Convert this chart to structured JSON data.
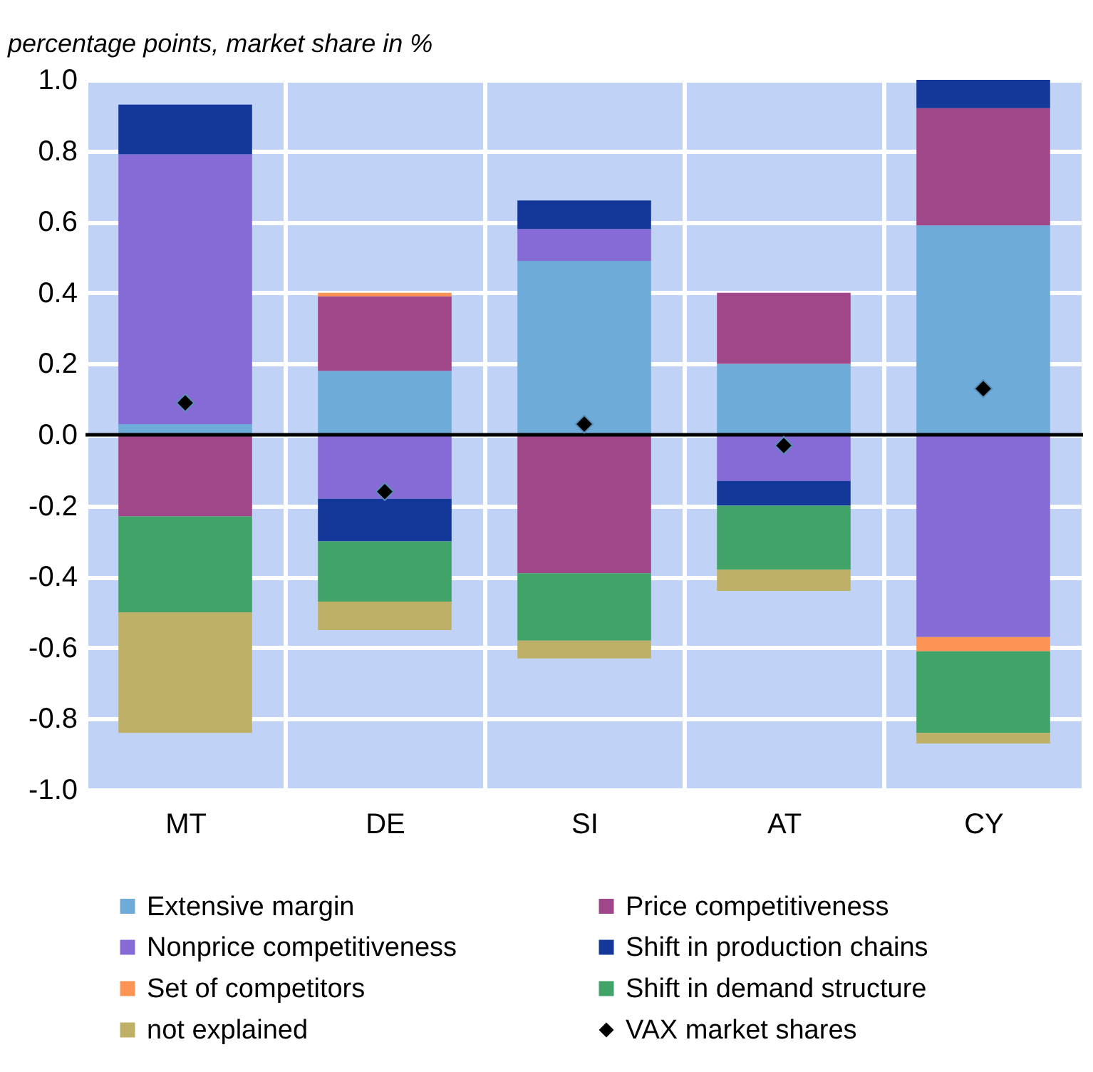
{
  "chart_data": {
    "type": "bar",
    "ylabel": "percentage points, market share in %",
    "categories": [
      "MT",
      "DE",
      "SI",
      "AT",
      "CY"
    ],
    "stacked": true,
    "series": [
      {
        "name": "Extensive margin",
        "color": "#6fabd9",
        "values": [
          0.03,
          0.18,
          0.49,
          0.2,
          0.59
        ]
      },
      {
        "name": "Price competitiveness",
        "color": "#a0478a",
        "values": [
          -0.23,
          0.21,
          -0.39,
          0.2,
          0.33
        ]
      },
      {
        "name": "Nonprice competitiveness",
        "color": "#866bd6",
        "values": [
          0.76,
          -0.18,
          0.09,
          -0.13,
          -0.57
        ]
      },
      {
        "name": "Shift in production chains",
        "color": "#13389a",
        "values": [
          0.14,
          -0.12,
          0.08,
          -0.07,
          0.08
        ]
      },
      {
        "name": "Set of competitors",
        "color": "#fc9455",
        "values": [
          null,
          0.01,
          null,
          null,
          -0.04
        ]
      },
      {
        "name": "Shift in demand structure",
        "color": "#42a368",
        "values": [
          -0.27,
          -0.17,
          -0.19,
          -0.18,
          -0.23
        ]
      },
      {
        "name": "not explained",
        "color": "#bfb068",
        "values": [
          -0.34,
          -0.08,
          -0.05,
          -0.06,
          -0.03
        ]
      },
      {
        "name": "VAX market shares",
        "type": "scatter",
        "marker": "diamond",
        "color": "#000000",
        "x": [
          "MT",
          "DE",
          "SI",
          "AT",
          "CY"
        ],
        "values": [
          0.09,
          -0.16,
          0.03,
          -0.03,
          0.13
        ]
      }
    ],
    "ylim": [
      -1.0,
      1.0
    ],
    "yticks": [
      {
        "value": -1.0,
        "label": "-1.0"
      },
      {
        "value": -0.8,
        "label": "-0.8"
      },
      {
        "value": -0.6,
        "label": "-0.6"
      },
      {
        "value": -0.4,
        "label": "-0.4"
      },
      {
        "value": -0.2,
        "label": "-0.2"
      },
      {
        "value": 0,
        "label": "0.0"
      },
      {
        "value": 0.2,
        "label": "0.2"
      },
      {
        "value": 0.4,
        "label": "0.4"
      },
      {
        "value": 0.6,
        "label": "0.6"
      },
      {
        "value": 0.8,
        "label": "0.8"
      },
      {
        "value": 1.0,
        "label": "1.0"
      }
    ],
    "ref_lines": [
      {
        "axis": "y",
        "value": 0,
        "color": "#000000"
      }
    ],
    "grid": true,
    "legend": "bottom"
  }
}
